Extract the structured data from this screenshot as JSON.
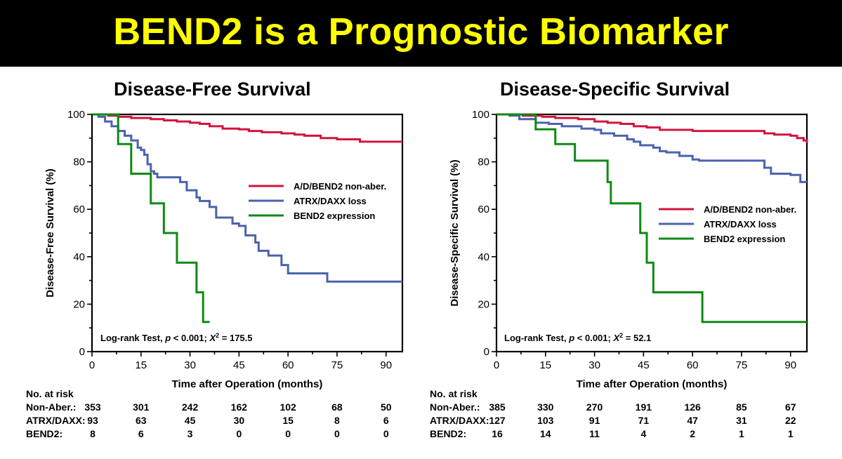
{
  "header": {
    "title": "BEND2 is a Prognostic Biomarker"
  },
  "colors": {
    "nonaber": "#d3143e",
    "atrx": "#4a63ad",
    "bend2": "#0e8a14",
    "banner_bg": "#000000",
    "banner_text": "#ffff00"
  },
  "chart_data": [
    {
      "type": "line",
      "subtype": "kaplan-meier",
      "title": "Disease-Free Survival",
      "xlabel": "Time after Operation (months)",
      "ylabel": "Disease-Free Survival (%)",
      "xlim": [
        0,
        95
      ],
      "ylim": [
        0,
        100
      ],
      "xticks": [
        0,
        15,
        30,
        45,
        60,
        75,
        90
      ],
      "yticks": [
        0,
        20,
        40,
        60,
        80,
        100
      ],
      "grid": false,
      "legend_position": "right-middle",
      "annotation": {
        "prefix": "Log-rank Test, ",
        "p": "p",
        "ptext": " < 0.001; ",
        "chi": "X",
        "sup": "2",
        "value": " = 175.5"
      },
      "series": [
        {
          "name": "A/D/BEND2 non-aber.",
          "color": "#d3143e",
          "points": [
            [
              0,
              100
            ],
            [
              5,
              99.5
            ],
            [
              8,
              99
            ],
            [
              12,
              98.5
            ],
            [
              18,
              98
            ],
            [
              22,
              97.5
            ],
            [
              26,
              97
            ],
            [
              30,
              96.5
            ],
            [
              33,
              96
            ],
            [
              36,
              95
            ],
            [
              40,
              94
            ],
            [
              45,
              93.7
            ],
            [
              48,
              93
            ],
            [
              52,
              92.5
            ],
            [
              58,
              92
            ],
            [
              62,
              91.5
            ],
            [
              65,
              91
            ],
            [
              70,
              90
            ],
            [
              75,
              89.5
            ],
            [
              82,
              88.5
            ],
            [
              95,
              88.5
            ]
          ]
        },
        {
          "name": "ATRX/DAXX loss",
          "color": "#4a63ad",
          "points": [
            [
              0,
              100
            ],
            [
              2,
              99
            ],
            [
              4,
              97
            ],
            [
              6,
              95
            ],
            [
              8,
              93
            ],
            [
              10,
              91
            ],
            [
              12,
              89
            ],
            [
              14,
              86
            ],
            [
              15,
              85
            ],
            [
              16,
              83
            ],
            [
              17,
              79
            ],
            [
              18,
              76
            ],
            [
              19,
              75
            ],
            [
              20,
              73.5
            ],
            [
              26,
              73.5
            ],
            [
              27,
              71.5
            ],
            [
              29,
              68
            ],
            [
              32,
              65
            ],
            [
              33,
              63.5
            ],
            [
              36,
              61
            ],
            [
              38,
              56.5
            ],
            [
              42,
              56.5
            ],
            [
              43,
              54
            ],
            [
              45,
              53
            ],
            [
              47,
              49
            ],
            [
              50,
              46
            ],
            [
              51,
              42.5
            ],
            [
              54,
              40.5
            ],
            [
              58,
              36.5
            ],
            [
              60,
              33
            ],
            [
              72,
              33
            ],
            [
              72,
              29.5
            ],
            [
              95,
              29.5
            ]
          ]
        },
        {
          "name": "BEND2 expression",
          "color": "#0e8a14",
          "points": [
            [
              0,
              100
            ],
            [
              8,
              100
            ],
            [
              8,
              87.5
            ],
            [
              12,
              87.5
            ],
            [
              12,
              75
            ],
            [
              18,
              75
            ],
            [
              18,
              62.5
            ],
            [
              22,
              62.5
            ],
            [
              22,
              50
            ],
            [
              26,
              50
            ],
            [
              26,
              37.5
            ],
            [
              32,
              37.5
            ],
            [
              32,
              25
            ],
            [
              34,
              25
            ],
            [
              34,
              12.5
            ],
            [
              36,
              12.5
            ]
          ]
        }
      ],
      "risk_table": {
        "header": "No. at risk",
        "times": [
          0,
          15,
          30,
          45,
          60,
          75,
          90
        ],
        "rows": [
          {
            "label": "Non-Aber.:",
            "values": [
              "353",
              "301",
              "242",
              "162",
              "102",
              "68",
              "50"
            ]
          },
          {
            "label": "ATRX/DAXX:",
            "values": [
              "93",
              "63",
              "45",
              "30",
              "15",
              "8",
              "6"
            ]
          },
          {
            "label": "BEND2:",
            "values": [
              "8",
              "6",
              "3",
              "0",
              "0",
              "0",
              "0"
            ]
          }
        ]
      }
    },
    {
      "type": "line",
      "subtype": "kaplan-meier",
      "title": "Disease-Specific Survival",
      "xlabel": "Time after Operation (months)",
      "ylabel": "Disease-Specific Survival (%)",
      "xlim": [
        0,
        95
      ],
      "ylim": [
        0,
        100
      ],
      "xticks": [
        0,
        15,
        30,
        45,
        60,
        75,
        90
      ],
      "yticks": [
        0,
        20,
        40,
        60,
        80,
        100
      ],
      "grid": false,
      "legend_position": "right-middle",
      "annotation": {
        "prefix": "Log-rank Test, ",
        "p": "p",
        "ptext": " < 0.001; ",
        "chi": "X",
        "sup": "2",
        "value": " = 52.1"
      },
      "series": [
        {
          "name": "A/D/BEND2 non-aber.",
          "color": "#d3143e",
          "points": [
            [
              0,
              100
            ],
            [
              8,
              99.5
            ],
            [
              14,
              99
            ],
            [
              18,
              98.5
            ],
            [
              25,
              98
            ],
            [
              30,
              97
            ],
            [
              34,
              96.5
            ],
            [
              38,
              96
            ],
            [
              42,
              95
            ],
            [
              46,
              94.5
            ],
            [
              50,
              93.5
            ],
            [
              55,
              93.5
            ],
            [
              60,
              93
            ],
            [
              65,
              93
            ],
            [
              70,
              93
            ],
            [
              80,
              93
            ],
            [
              82,
              92
            ],
            [
              85,
              91.5
            ],
            [
              90,
              91
            ],
            [
              92,
              90
            ],
            [
              94,
              89
            ],
            [
              95,
              88
            ]
          ]
        },
        {
          "name": "ATRX/DAXX loss",
          "color": "#4a63ad",
          "points": [
            [
              0,
              100
            ],
            [
              4,
              99.5
            ],
            [
              7,
              98
            ],
            [
              12,
              96.5
            ],
            [
              16,
              96
            ],
            [
              20,
              95
            ],
            [
              26,
              94
            ],
            [
              30,
              93.5
            ],
            [
              32,
              92
            ],
            [
              36,
              91
            ],
            [
              40,
              89.5
            ],
            [
              42,
              88.5
            ],
            [
              44,
              87
            ],
            [
              48,
              86
            ],
            [
              50,
              84.5
            ],
            [
              52,
              84
            ],
            [
              56,
              82.5
            ],
            [
              58,
              82.5
            ],
            [
              60,
              81
            ],
            [
              62,
              80.5
            ],
            [
              80,
              80.5
            ],
            [
              82,
              77.5
            ],
            [
              84,
              75
            ],
            [
              88,
              75
            ],
            [
              90,
              74.5
            ],
            [
              93,
              71.5
            ],
            [
              95,
              71.5
            ]
          ]
        },
        {
          "name": "BEND2 expression",
          "color": "#0e8a14",
          "points": [
            [
              0,
              100
            ],
            [
              12,
              100
            ],
            [
              12,
              93.7
            ],
            [
              18,
              93.7
            ],
            [
              18,
              87.5
            ],
            [
              24,
              87.5
            ],
            [
              24,
              80.5
            ],
            [
              34,
              80.5
            ],
            [
              34,
              71.5
            ],
            [
              35,
              71.5
            ],
            [
              35,
              62.5
            ],
            [
              44,
              62.5
            ],
            [
              44,
              50
            ],
            [
              46,
              50
            ],
            [
              46,
              37.5
            ],
            [
              48,
              37.5
            ],
            [
              48,
              25
            ],
            [
              63,
              25
            ],
            [
              63,
              12.5
            ],
            [
              95,
              12.5
            ]
          ]
        }
      ],
      "risk_table": {
        "header": "No. at risk",
        "times": [
          0,
          15,
          30,
          45,
          60,
          75,
          90
        ],
        "rows": [
          {
            "label": "Non-Aber.:",
            "values": [
              "385",
              "330",
              "270",
              "191",
              "126",
              "85",
              "67"
            ]
          },
          {
            "label": "ATRX/DAXX:",
            "values": [
              "127",
              "103",
              "91",
              "71",
              "47",
              "31",
              "22"
            ]
          },
          {
            "label": "BEND2:",
            "values": [
              "16",
              "14",
              "11",
              "4",
              "2",
              "1",
              "1"
            ]
          }
        ]
      }
    }
  ]
}
